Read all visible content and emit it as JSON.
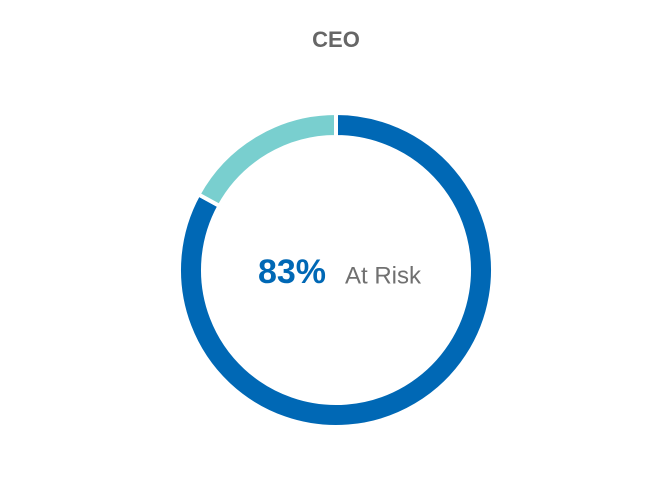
{
  "chart_data": {
    "type": "pie",
    "donut": true,
    "title": "CEO",
    "categories": [
      "At Risk",
      null
    ],
    "values": [
      83,
      17
    ],
    "value_labels": [
      "83%",
      null
    ],
    "colors": [
      "#0068b5",
      "#79cfcf"
    ]
  }
}
